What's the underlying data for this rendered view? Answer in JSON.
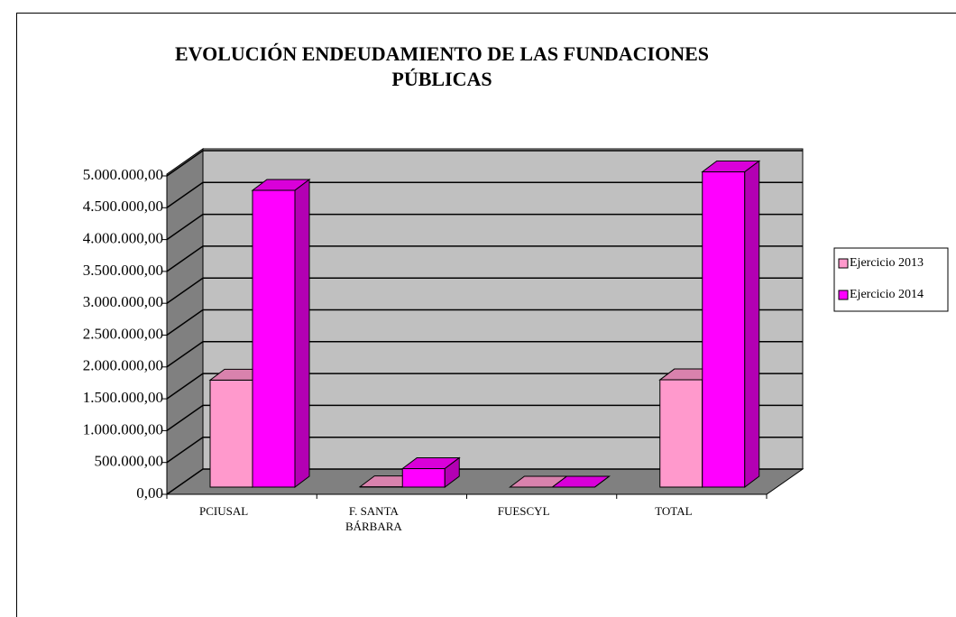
{
  "chart_data": {
    "type": "bar3d",
    "title": "EVOLUCIÓN ENDEUDAMIENTO DE LAS FUNDACIONES PÚBLICAS",
    "categories": [
      "PCIUSAL",
      "F. SANTA BÁRBARA",
      "FUESCYL",
      "TOTAL"
    ],
    "series": [
      {
        "name": "Ejercicio 2013",
        "color": "#ff99cc",
        "values": [
          1680000,
          5000,
          0,
          1685000
        ]
      },
      {
        "name": "Ejercicio 2014",
        "color": "#ff00ff",
        "values": [
          4660000,
          290000,
          0,
          4950000
        ]
      }
    ],
    "ylim": [
      0,
      5000000
    ],
    "yticks": [
      {
        "value": 0,
        "label": "0,00"
      },
      {
        "value": 500000,
        "label": "500.000,00"
      },
      {
        "value": 1000000,
        "label": "1.000.000,00"
      },
      {
        "value": 1500000,
        "label": "1.500.000,00"
      },
      {
        "value": 2000000,
        "label": "2.000.000,00"
      },
      {
        "value": 2500000,
        "label": "2.500.000,00"
      },
      {
        "value": 3000000,
        "label": "3.000.000,00"
      },
      {
        "value": 3500000,
        "label": "3.500.000,00"
      },
      {
        "value": 4000000,
        "label": "4.000.000,00"
      },
      {
        "value": 4500000,
        "label": "4.500.000,00"
      },
      {
        "value": 5000000,
        "label": "5.000.000,00"
      }
    ],
    "grid": true,
    "legend": "right"
  }
}
